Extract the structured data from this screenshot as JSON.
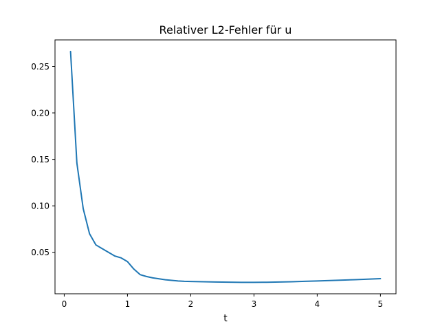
{
  "chart_data": {
    "type": "line",
    "title": "Relativer L2-Fehler für u",
    "xlabel": "t",
    "ylabel": "",
    "xlim": [
      -0.146,
      5.246
    ],
    "ylim": [
      0.0054,
      0.2785
    ],
    "x_ticks": [
      0,
      1,
      2,
      3,
      4,
      5
    ],
    "x_tick_labels": [
      "0",
      "1",
      "2",
      "3",
      "4",
      "5"
    ],
    "y_ticks": [
      0.05,
      0.1,
      0.15,
      0.2,
      0.25
    ],
    "y_tick_labels": [
      "0.05",
      "0.10",
      "0.15",
      "0.20",
      "0.25"
    ],
    "grid": false,
    "legend": "none",
    "series": [
      {
        "color": "#1f77b4",
        "x": [
          0.1,
          0.2,
          0.3,
          0.4,
          0.5,
          0.6,
          0.7,
          0.8,
          0.9,
          1.0,
          1.1,
          1.2,
          1.3,
          1.4,
          1.5,
          1.6,
          1.7,
          1.8,
          1.9,
          2.0,
          2.2,
          2.4,
          2.6,
          2.8,
          3.0,
          3.2,
          3.4,
          3.6,
          3.8,
          4.0,
          4.2,
          4.4,
          4.6,
          4.8,
          5.0
        ],
        "y": [
          0.266,
          0.146,
          0.097,
          0.07,
          0.058,
          0.054,
          0.05,
          0.046,
          0.044,
          0.04,
          0.032,
          0.026,
          0.024,
          0.0225,
          0.0215,
          0.0205,
          0.0198,
          0.0192,
          0.0188,
          0.0186,
          0.0184,
          0.0181,
          0.0179,
          0.0177,
          0.0177,
          0.0178,
          0.0181,
          0.0184,
          0.0188,
          0.0192,
          0.0196,
          0.0201,
          0.0206,
          0.0211,
          0.0217
        ]
      }
    ]
  }
}
